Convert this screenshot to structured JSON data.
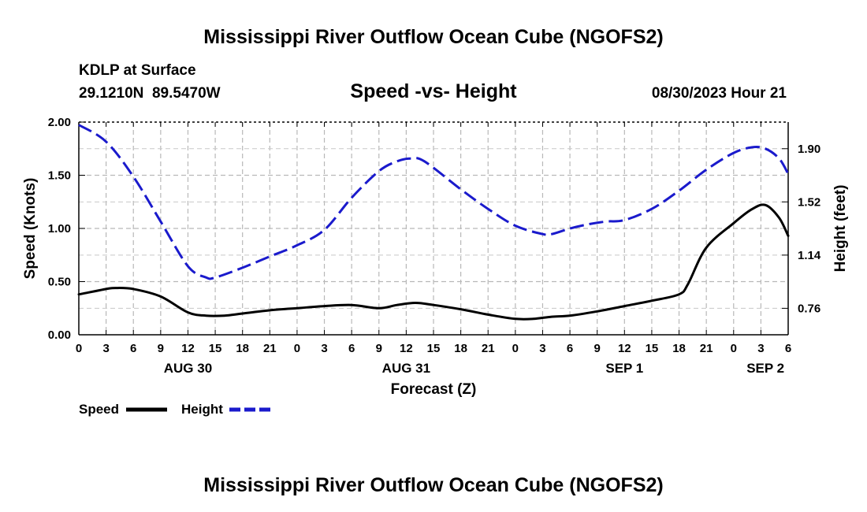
{
  "chart_data": {
    "type": "line",
    "title": "Mississippi River Outflow Ocean Cube (NGOFS2)",
    "footer_title": "Mississippi River Outflow Ocean Cube (NGOFS2)",
    "station": "KDLP at Surface",
    "location": "29.1210N  89.5470W",
    "subtitle": "Speed -vs- Height",
    "timestamp": "08/30/2023 Hour 21",
    "xlabel": "Forecast (Z)",
    "ylabel_left": "Speed (Knots)",
    "ylabel_right": "Height (feet)",
    "x_hours_range": [
      0,
      78
    ],
    "x_tick_labels": [
      "0",
      "3",
      "6",
      "9",
      "12",
      "15",
      "18",
      "21",
      "0",
      "3",
      "6",
      "9",
      "12",
      "15",
      "18",
      "21",
      "0",
      "3",
      "6",
      "9",
      "12",
      "15",
      "18",
      "21",
      "0",
      "3",
      "6"
    ],
    "day_labels": [
      {
        "label": "AUG 30",
        "hour": 12
      },
      {
        "label": "AUG 31",
        "hour": 36
      },
      {
        "label": "SEP 1",
        "hour": 60
      },
      {
        "label": "SEP 2",
        "hour": 75.5
      }
    ],
    "ylim_left": [
      0,
      2.0
    ],
    "y_left_ticks": [
      "0.00",
      "0.50",
      "1.00",
      "1.50",
      "2.00"
    ],
    "ylim_right": [
      0.571,
      2.09
    ],
    "y_right_ticks": [
      "0.76",
      "1.14",
      "1.52",
      "1.90"
    ],
    "grid": true,
    "legend": [
      {
        "label": "Speed",
        "color": "#000000",
        "style": "solid"
      },
      {
        "label": "Height",
        "color": "#1a1acc",
        "style": "dashed"
      }
    ],
    "series": [
      {
        "name": "Speed",
        "axis": "left",
        "color": "#000000",
        "x": [
          0,
          3,
          4,
          6,
          9,
          12,
          14,
          16,
          18,
          21,
          24,
          27,
          30,
          33,
          35,
          37,
          39,
          42,
          45,
          48,
          50,
          52,
          54,
          57,
          60,
          63,
          66,
          67,
          69,
          72,
          74,
          75.5,
          77,
          78
        ],
        "values": [
          0.38,
          0.43,
          0.44,
          0.43,
          0.36,
          0.21,
          0.18,
          0.18,
          0.2,
          0.23,
          0.25,
          0.27,
          0.28,
          0.25,
          0.28,
          0.3,
          0.28,
          0.24,
          0.19,
          0.15,
          0.15,
          0.17,
          0.18,
          0.22,
          0.27,
          0.32,
          0.38,
          0.48,
          0.82,
          1.05,
          1.18,
          1.22,
          1.1,
          0.93
        ]
      },
      {
        "name": "Height",
        "axis": "right",
        "color": "#1a1acc",
        "x": [
          0,
          3,
          6,
          9,
          12,
          14,
          15,
          18,
          21,
          24,
          27,
          30,
          33,
          35,
          36.5,
          38,
          42,
          45,
          48,
          51,
          52,
          54,
          56,
          58,
          60,
          63,
          66,
          69,
          72,
          74,
          75.5,
          77,
          78
        ],
        "values": [
          2.07,
          1.95,
          1.7,
          1.38,
          1.06,
          0.98,
          0.98,
          1.05,
          1.13,
          1.21,
          1.32,
          1.55,
          1.74,
          1.81,
          1.83,
          1.81,
          1.61,
          1.47,
          1.35,
          1.29,
          1.29,
          1.33,
          1.36,
          1.38,
          1.39,
          1.47,
          1.6,
          1.75,
          1.87,
          1.91,
          1.9,
          1.83,
          1.72
        ]
      }
    ]
  }
}
